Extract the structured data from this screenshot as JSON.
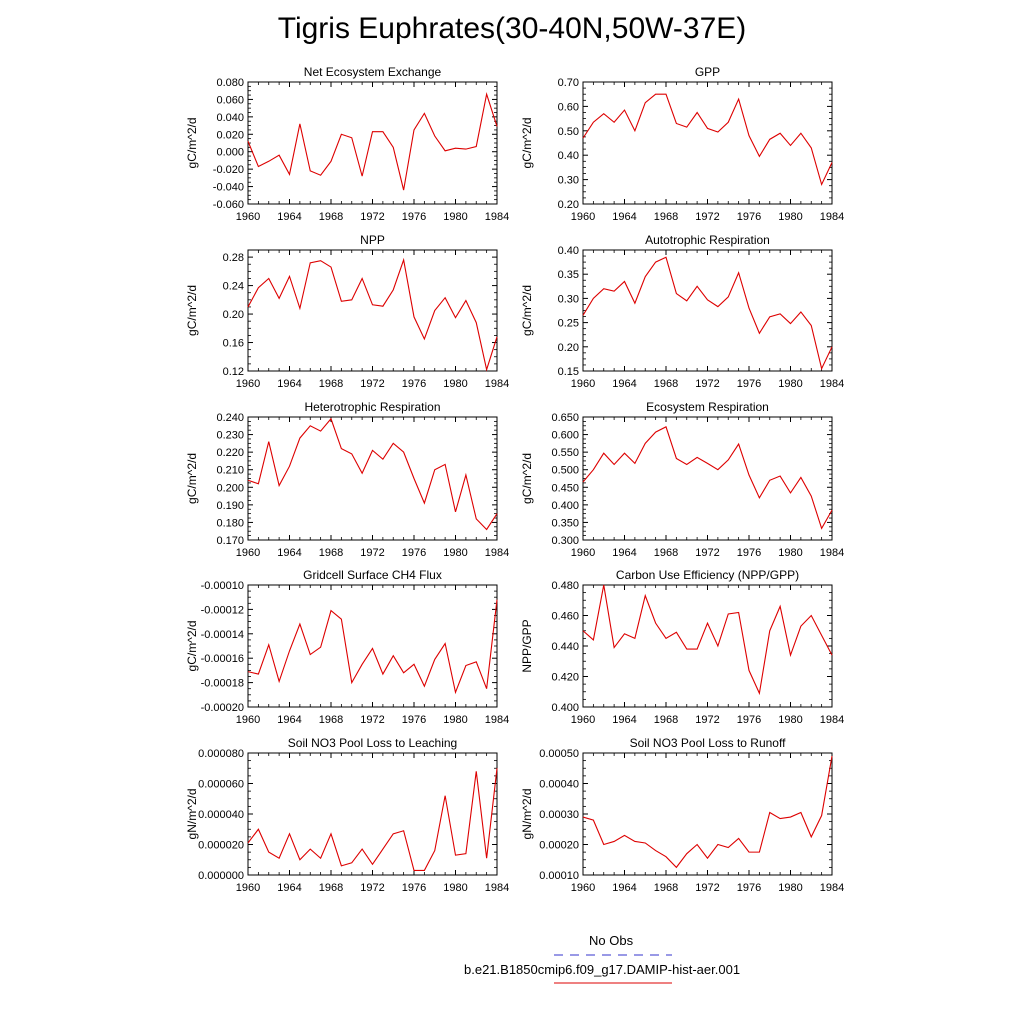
{
  "page_title": "Tigris Euphrates(30-40N,50W-37E)",
  "legend": {
    "obs_label": "No Obs",
    "obs_color": "#3333cc",
    "model_label": "b.e21.B1850cmip6.f09_g17.DAMIP-hist-aer.001",
    "model_color": "#dd0000"
  },
  "chart_data": [
    {
      "type": "line",
      "title": "Net Ecosystem Exchange",
      "ylabel": "gC/m^2/d",
      "xlabel": "",
      "xlim": [
        1960,
        1984
      ],
      "ylim": [
        -0.06,
        0.08
      ],
      "xticks": [
        1960,
        1964,
        1968,
        1972,
        1976,
        1980,
        1984
      ],
      "xtick_labels": [
        "1960",
        "1964",
        "1968",
        "1972",
        "1976",
        "1980",
        "1984"
      ],
      "yticks": [
        -0.06,
        -0.04,
        -0.02,
        0.0,
        0.02,
        0.04,
        0.06,
        0.08
      ],
      "ytick_labels": [
        "-0.060",
        "-0.040",
        "-0.020",
        "0.000",
        "0.020",
        "0.040",
        "0.060",
        "0.080"
      ],
      "grid": false,
      "x": [
        1960,
        1961,
        1962,
        1963,
        1964,
        1965,
        1966,
        1967,
        1968,
        1969,
        1970,
        1971,
        1972,
        1973,
        1974,
        1975,
        1976,
        1977,
        1978,
        1979,
        1980,
        1981,
        1982,
        1983,
        1984
      ],
      "series": [
        {
          "color": "#dd0000",
          "values": [
            0.012,
            -0.017,
            -0.011,
            -0.004,
            -0.026,
            0.032,
            -0.022,
            -0.027,
            -0.011,
            0.02,
            0.016,
            -0.028,
            0.023,
            0.023,
            0.005,
            -0.044,
            0.025,
            0.044,
            0.018,
            0.001,
            0.004,
            0.003,
            0.006,
            0.066,
            0.029
          ]
        }
      ]
    },
    {
      "type": "line",
      "title": "GPP",
      "ylabel": "gC/m^2/d",
      "xlabel": "",
      "xlim": [
        1960,
        1984
      ],
      "ylim": [
        0.2,
        0.7
      ],
      "xticks": [
        1960,
        1964,
        1968,
        1972,
        1976,
        1980,
        1984
      ],
      "xtick_labels": [
        "1960",
        "1964",
        "1968",
        "1972",
        "1976",
        "1980",
        "1984"
      ],
      "yticks": [
        0.2,
        0.3,
        0.4,
        0.5,
        0.6,
        0.7
      ],
      "ytick_labels": [
        "0.20",
        "0.30",
        "0.40",
        "0.50",
        "0.60",
        "0.70"
      ],
      "grid": false,
      "x": [
        1960,
        1961,
        1962,
        1963,
        1964,
        1965,
        1966,
        1967,
        1968,
        1969,
        1970,
        1971,
        1972,
        1973,
        1974,
        1975,
        1976,
        1977,
        1978,
        1979,
        1980,
        1981,
        1982,
        1983,
        1984
      ],
      "series": [
        {
          "color": "#dd0000",
          "values": [
            0.47,
            0.535,
            0.57,
            0.535,
            0.585,
            0.5,
            0.615,
            0.65,
            0.65,
            0.53,
            0.515,
            0.575,
            0.51,
            0.495,
            0.535,
            0.63,
            0.48,
            0.395,
            0.465,
            0.49,
            0.44,
            0.49,
            0.43,
            0.28,
            0.37
          ]
        }
      ]
    },
    {
      "type": "line",
      "title": "NPP",
      "ylabel": "gC/m^2/d",
      "xlabel": "",
      "xlim": [
        1960,
        1984
      ],
      "ylim": [
        0.12,
        0.29
      ],
      "xticks": [
        1960,
        1964,
        1968,
        1972,
        1976,
        1980,
        1984
      ],
      "xtick_labels": [
        "1960",
        "1964",
        "1968",
        "1972",
        "1976",
        "1980",
        "1984"
      ],
      "yticks": [
        0.12,
        0.16,
        0.2,
        0.24,
        0.28
      ],
      "ytick_labels": [
        "0.12",
        "0.16",
        "0.20",
        "0.24",
        "0.28"
      ],
      "grid": false,
      "x": [
        1960,
        1961,
        1962,
        1963,
        1964,
        1965,
        1966,
        1967,
        1968,
        1969,
        1970,
        1971,
        1972,
        1973,
        1974,
        1975,
        1976,
        1977,
        1978,
        1979,
        1980,
        1981,
        1982,
        1983,
        1984
      ],
      "series": [
        {
          "color": "#dd0000",
          "values": [
            0.21,
            0.237,
            0.25,
            0.222,
            0.253,
            0.208,
            0.272,
            0.275,
            0.266,
            0.218,
            0.22,
            0.25,
            0.213,
            0.211,
            0.234,
            0.276,
            0.196,
            0.165,
            0.205,
            0.223,
            0.195,
            0.219,
            0.188,
            0.122,
            0.168
          ]
        }
      ]
    },
    {
      "type": "line",
      "title": "Autotrophic Respiration",
      "ylabel": "gC/m^2/d",
      "xlabel": "",
      "xlim": [
        1960,
        1984
      ],
      "ylim": [
        0.15,
        0.4
      ],
      "xticks": [
        1960,
        1964,
        1968,
        1972,
        1976,
        1980,
        1984
      ],
      "xtick_labels": [
        "1960",
        "1964",
        "1968",
        "1972",
        "1976",
        "1980",
        "1984"
      ],
      "yticks": [
        0.15,
        0.2,
        0.25,
        0.3,
        0.35,
        0.4
      ],
      "ytick_labels": [
        "0.15",
        "0.20",
        "0.25",
        "0.30",
        "0.35",
        "0.40"
      ],
      "grid": false,
      "x": [
        1960,
        1961,
        1962,
        1963,
        1964,
        1965,
        1966,
        1967,
        1968,
        1969,
        1970,
        1971,
        1972,
        1973,
        1974,
        1975,
        1976,
        1977,
        1978,
        1979,
        1980,
        1981,
        1982,
        1983,
        1984
      ],
      "series": [
        {
          "color": "#dd0000",
          "values": [
            0.265,
            0.3,
            0.32,
            0.315,
            0.335,
            0.29,
            0.345,
            0.375,
            0.385,
            0.31,
            0.295,
            0.325,
            0.297,
            0.283,
            0.303,
            0.353,
            0.28,
            0.228,
            0.262,
            0.268,
            0.248,
            0.272,
            0.244,
            0.155,
            0.2
          ]
        }
      ]
    },
    {
      "type": "line",
      "title": "Heterotrophic Respiration",
      "ylabel": "gC/m^2/d",
      "xlabel": "",
      "xlim": [
        1960,
        1984
      ],
      "ylim": [
        0.17,
        0.24
      ],
      "xticks": [
        1960,
        1964,
        1968,
        1972,
        1976,
        1980,
        1984
      ],
      "xtick_labels": [
        "1960",
        "1964",
        "1968",
        "1972",
        "1976",
        "1980",
        "1984"
      ],
      "yticks": [
        0.17,
        0.18,
        0.19,
        0.2,
        0.21,
        0.22,
        0.23,
        0.24
      ],
      "ytick_labels": [
        "0.170",
        "0.180",
        "0.190",
        "0.200",
        "0.210",
        "0.220",
        "0.230",
        "0.240"
      ],
      "grid": false,
      "x": [
        1960,
        1961,
        1962,
        1963,
        1964,
        1965,
        1966,
        1967,
        1968,
        1969,
        1970,
        1971,
        1972,
        1973,
        1974,
        1975,
        1976,
        1977,
        1978,
        1979,
        1980,
        1981,
        1982,
        1983,
        1984
      ],
      "series": [
        {
          "color": "#dd0000",
          "values": [
            0.204,
            0.202,
            0.226,
            0.201,
            0.212,
            0.228,
            0.235,
            0.232,
            0.239,
            0.222,
            0.219,
            0.208,
            0.221,
            0.216,
            0.225,
            0.22,
            0.205,
            0.191,
            0.21,
            0.213,
            0.186,
            0.207,
            0.182,
            0.176,
            0.185
          ]
        }
      ]
    },
    {
      "type": "line",
      "title": "Ecosystem Respiration",
      "ylabel": "gC/m^2/d",
      "xlabel": "",
      "xlim": [
        1960,
        1984
      ],
      "ylim": [
        0.3,
        0.65
      ],
      "xticks": [
        1960,
        1964,
        1968,
        1972,
        1976,
        1980,
        1984
      ],
      "xtick_labels": [
        "1960",
        "1964",
        "1968",
        "1972",
        "1976",
        "1980",
        "1984"
      ],
      "yticks": [
        0.3,
        0.35,
        0.4,
        0.45,
        0.5,
        0.55,
        0.6,
        0.65
      ],
      "ytick_labels": [
        "0.300",
        "0.350",
        "0.400",
        "0.450",
        "0.500",
        "0.550",
        "0.600",
        "0.650"
      ],
      "grid": false,
      "x": [
        1960,
        1961,
        1962,
        1963,
        1964,
        1965,
        1966,
        1967,
        1968,
        1969,
        1970,
        1971,
        1972,
        1973,
        1974,
        1975,
        1976,
        1977,
        1978,
        1979,
        1980,
        1981,
        1982,
        1983,
        1984
      ],
      "series": [
        {
          "color": "#dd0000",
          "values": [
            0.465,
            0.5,
            0.547,
            0.515,
            0.547,
            0.518,
            0.575,
            0.607,
            0.622,
            0.532,
            0.515,
            0.535,
            0.518,
            0.5,
            0.528,
            0.573,
            0.485,
            0.42,
            0.47,
            0.482,
            0.434,
            0.478,
            0.425,
            0.333,
            0.385
          ]
        }
      ]
    },
    {
      "type": "line",
      "title": "Gridcell Surface CH4 Flux",
      "ylabel": "gC/m^2/d",
      "xlabel": "",
      "xlim": [
        1960,
        1984
      ],
      "ylim": [
        -0.0002,
        -0.0001
      ],
      "xticks": [
        1960,
        1964,
        1968,
        1972,
        1976,
        1980,
        1984
      ],
      "xtick_labels": [
        "1960",
        "1964",
        "1968",
        "1972",
        "1976",
        "1980",
        "1984"
      ],
      "yticks": [
        -0.0002,
        -0.00018,
        -0.00016,
        -0.00014,
        -0.00012,
        -0.0001
      ],
      "ytick_labels": [
        "-0.00020",
        "-0.00018",
        "-0.00016",
        "-0.00014",
        "-0.00012",
        "-0.00010"
      ],
      "grid": false,
      "x": [
        1960,
        1961,
        1962,
        1963,
        1964,
        1965,
        1966,
        1967,
        1968,
        1969,
        1970,
        1971,
        1972,
        1973,
        1974,
        1975,
        1976,
        1977,
        1978,
        1979,
        1980,
        1981,
        1982,
        1983,
        1984
      ],
      "series": [
        {
          "color": "#dd0000",
          "values": [
            -0.000171,
            -0.000173,
            -0.000149,
            -0.000179,
            -0.000154,
            -0.000132,
            -0.000157,
            -0.000151,
            -0.000121,
            -0.000128,
            -0.00018,
            -0.000165,
            -0.000152,
            -0.000173,
            -0.000158,
            -0.000172,
            -0.000165,
            -0.000183,
            -0.000161,
            -0.000148,
            -0.000188,
            -0.000166,
            -0.000163,
            -0.000185,
            -0.000112
          ]
        }
      ]
    },
    {
      "type": "line",
      "title": "Carbon Use Efficiency (NPP/GPP)",
      "ylabel": "NPP/GPP",
      "xlabel": "",
      "xlim": [
        1960,
        1984
      ],
      "ylim": [
        0.4,
        0.48
      ],
      "xticks": [
        1960,
        1964,
        1968,
        1972,
        1976,
        1980,
        1984
      ],
      "xtick_labels": [
        "1960",
        "1964",
        "1968",
        "1972",
        "1976",
        "1980",
        "1984"
      ],
      "yticks": [
        0.4,
        0.42,
        0.44,
        0.46,
        0.48
      ],
      "ytick_labels": [
        "0.400",
        "0.420",
        "0.440",
        "0.460",
        "0.480"
      ],
      "grid": false,
      "x": [
        1960,
        1961,
        1962,
        1963,
        1964,
        1965,
        1966,
        1967,
        1968,
        1969,
        1970,
        1971,
        1972,
        1973,
        1974,
        1975,
        1976,
        1977,
        1978,
        1979,
        1980,
        1981,
        1982,
        1983,
        1984
      ],
      "series": [
        {
          "color": "#dd0000",
          "values": [
            0.45,
            0.444,
            0.48,
            0.439,
            0.448,
            0.445,
            0.473,
            0.455,
            0.445,
            0.449,
            0.438,
            0.438,
            0.455,
            0.44,
            0.461,
            0.462,
            0.424,
            0.409,
            0.45,
            0.466,
            0.434,
            0.453,
            0.46,
            0.447,
            0.434
          ]
        }
      ]
    },
    {
      "type": "line",
      "title": "Soil NO3 Pool Loss to Leaching",
      "ylabel": "gN/m^2/d",
      "xlabel": "",
      "xlim": [
        1960,
        1984
      ],
      "ylim": [
        0.0,
        8e-05
      ],
      "xticks": [
        1960,
        1964,
        1968,
        1972,
        1976,
        1980,
        1984
      ],
      "xtick_labels": [
        "1960",
        "1964",
        "1968",
        "1972",
        "1976",
        "1980",
        "1984"
      ],
      "yticks": [
        0.0,
        2e-05,
        4e-05,
        6e-05,
        8e-05
      ],
      "ytick_labels": [
        "0.000000",
        "0.000020",
        "0.000040",
        "0.000060",
        "0.000080"
      ],
      "grid": false,
      "x": [
        1960,
        1961,
        1962,
        1963,
        1964,
        1965,
        1966,
        1967,
        1968,
        1969,
        1970,
        1971,
        1972,
        1973,
        1974,
        1975,
        1976,
        1977,
        1978,
        1979,
        1980,
        1981,
        1982,
        1983,
        1984
      ],
      "series": [
        {
          "color": "#dd0000",
          "values": [
            2.1e-05,
            3e-05,
            1.5e-05,
            1.1e-05,
            2.7e-05,
            1e-05,
            1.7e-05,
            1.1e-05,
            2.7e-05,
            6e-06,
            8e-06,
            1.7e-05,
            7e-06,
            1.7e-05,
            2.7e-05,
            2.9e-05,
            3e-06,
            3e-06,
            1.6e-05,
            5.2e-05,
            1.3e-05,
            1.4e-05,
            6.8e-05,
            1.1e-05,
            7e-05
          ]
        }
      ]
    },
    {
      "type": "line",
      "title": "Soil NO3 Pool Loss to Runoff",
      "ylabel": "gN/m^2/d",
      "xlabel": "",
      "xlim": [
        1960,
        1984
      ],
      "ylim": [
        0.0001,
        0.0005
      ],
      "xticks": [
        1960,
        1964,
        1968,
        1972,
        1976,
        1980,
        1984
      ],
      "xtick_labels": [
        "1960",
        "1964",
        "1968",
        "1972",
        "1976",
        "1980",
        "1984"
      ],
      "yticks": [
        0.0001,
        0.0002,
        0.0003,
        0.0004,
        0.0005
      ],
      "ytick_labels": [
        "0.00010",
        "0.00020",
        "0.00030",
        "0.00040",
        "0.00050"
      ],
      "grid": false,
      "x": [
        1960,
        1961,
        1962,
        1963,
        1964,
        1965,
        1966,
        1967,
        1968,
        1969,
        1970,
        1971,
        1972,
        1973,
        1974,
        1975,
        1976,
        1977,
        1978,
        1979,
        1980,
        1981,
        1982,
        1983,
        1984
      ],
      "series": [
        {
          "color": "#dd0000",
          "values": [
            0.00029,
            0.00028,
            0.0002,
            0.00021,
            0.00023,
            0.00021,
            0.000205,
            0.00018,
            0.00016,
            0.000125,
            0.00017,
            0.0002,
            0.000155,
            0.0002,
            0.00019,
            0.00022,
            0.000175,
            0.000175,
            0.000305,
            0.000285,
            0.00029,
            0.000305,
            0.000225,
            0.000295,
            0.00049
          ]
        }
      ]
    }
  ]
}
